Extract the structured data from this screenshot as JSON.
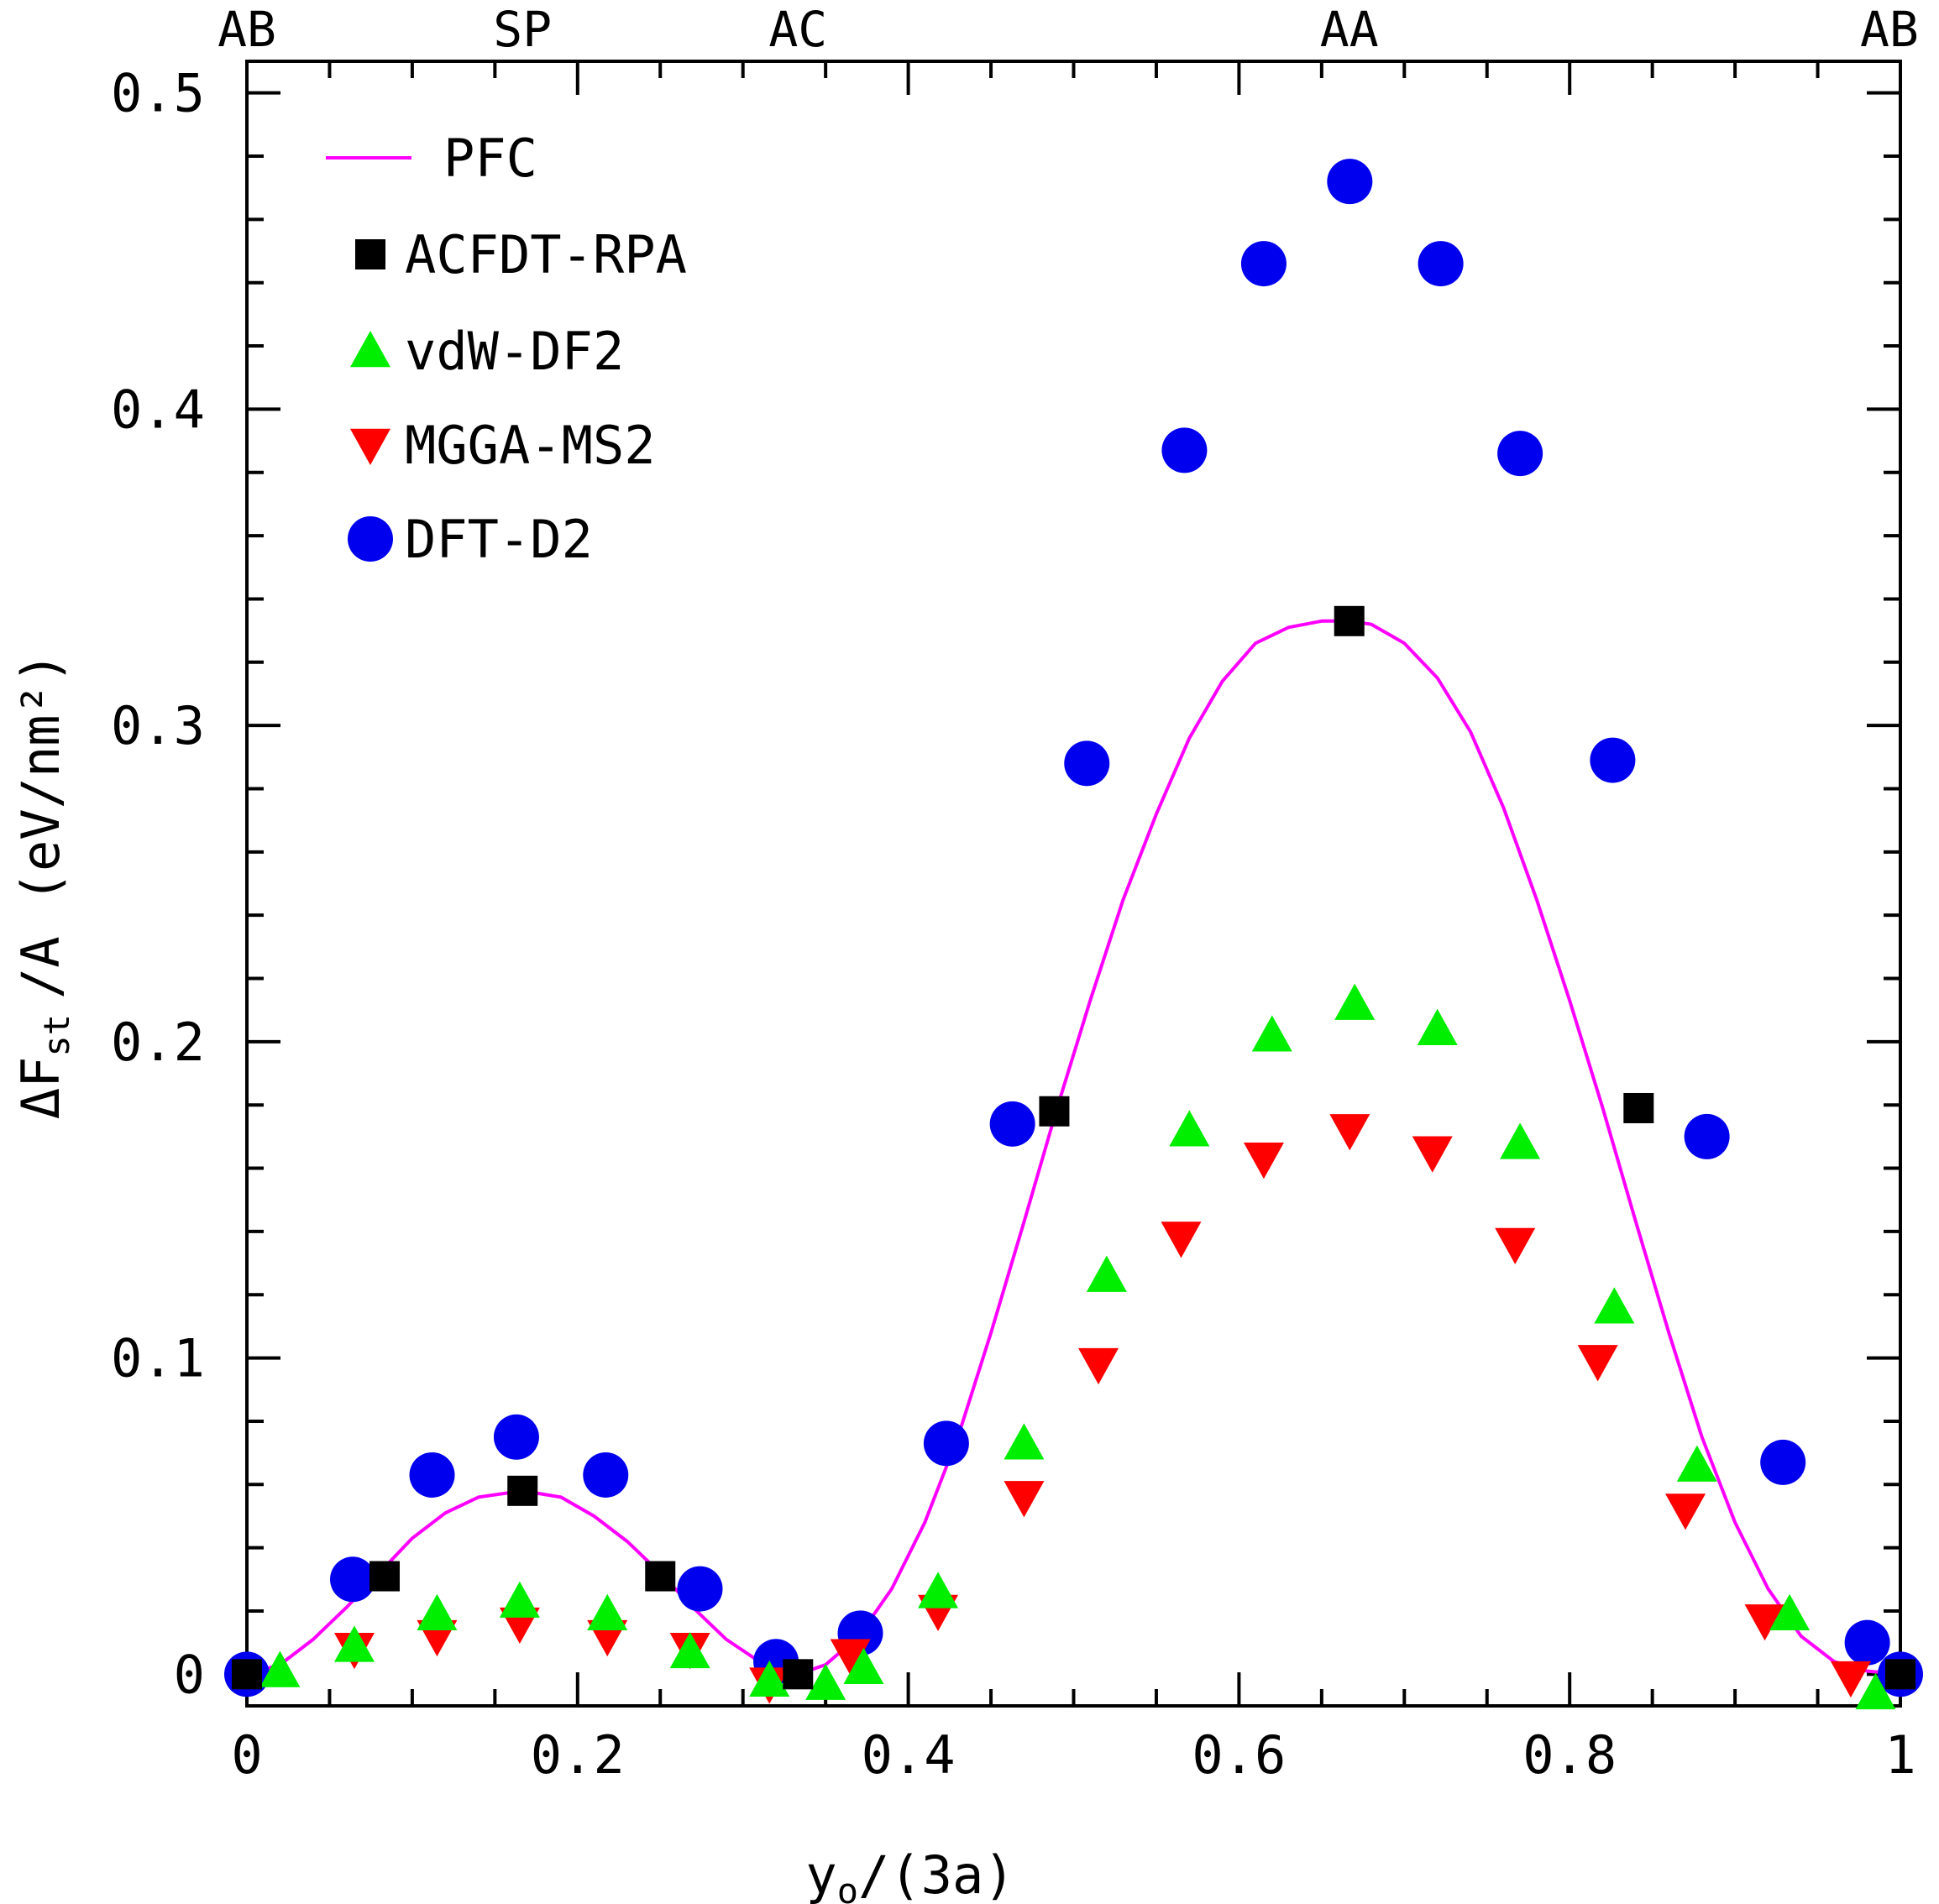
{
  "chart_data": {
    "type": "scatter",
    "xlabel": "y",
    "xlabel_sub": "o",
    "xlabel_suffix": "/(3a)",
    "ylabel_main": "ΔF",
    "ylabel_sub": "st",
    "ylabel_mid": "/A",
    "ylabel_units": "(eV/nm²)",
    "xlim": [
      0,
      1
    ],
    "ylim": [
      -0.01,
      0.51
    ],
    "x_ticks": [
      0,
      0.2,
      0.4,
      0.6,
      0.8,
      1
    ],
    "x_tick_labels": [
      "0",
      "0.2",
      "0.4",
      "0.6",
      "0.8",
      "1"
    ],
    "y_ticks": [
      0,
      0.1,
      0.2,
      0.3,
      0.4,
      0.5
    ],
    "y_tick_labels": [
      "0",
      "0.1",
      "0.2",
      "0.3",
      "0.4",
      "0.5"
    ],
    "top_labels": [
      {
        "x": 0,
        "text": "AB"
      },
      {
        "x": 0.1667,
        "text": "SP"
      },
      {
        "x": 0.3333,
        "text": "AC"
      },
      {
        "x": 0.6667,
        "text": "AA"
      },
      {
        "x": 1,
        "text": "AB"
      }
    ],
    "legend_position": "top-left",
    "series": [
      {
        "name": "PFC",
        "marker": "line",
        "color": "#ff00ff",
        "x": [
          0,
          0.02,
          0.04,
          0.06,
          0.08,
          0.1,
          0.12,
          0.14,
          0.1667,
          0.19,
          0.21,
          0.23,
          0.25,
          0.27,
          0.29,
          0.31,
          0.3333,
          0.35,
          0.37,
          0.39,
          0.41,
          0.43,
          0.45,
          0.47,
          0.49,
          0.51,
          0.53,
          0.55,
          0.57,
          0.59,
          0.61,
          0.63,
          0.65,
          0.6667,
          0.68,
          0.7,
          0.72,
          0.74,
          0.76,
          0.78,
          0.8,
          0.82,
          0.84,
          0.86,
          0.88,
          0.9,
          0.92,
          0.94,
          0.96,
          0.98,
          1.0
        ],
        "y": [
          0,
          0.003,
          0.011,
          0.021,
          0.032,
          0.043,
          0.051,
          0.056,
          0.058,
          0.056,
          0.05,
          0.042,
          0.032,
          0.021,
          0.011,
          0.004,
          0,
          0.003,
          0.012,
          0.027,
          0.048,
          0.075,
          0.108,
          0.143,
          0.179,
          0.213,
          0.245,
          0.272,
          0.296,
          0.314,
          0.326,
          0.331,
          0.333,
          0.333,
          0.332,
          0.326,
          0.315,
          0.298,
          0.274,
          0.245,
          0.213,
          0.179,
          0.143,
          0.108,
          0.075,
          0.048,
          0.027,
          0.012,
          0.004,
          0.001,
          0
        ]
      },
      {
        "name": "ACFDT-RPA",
        "marker": "square",
        "color": "#000000",
        "x": [
          0,
          0.0833,
          0.1667,
          0.25,
          0.3333,
          0.4883,
          0.6667,
          0.8417,
          1.0
        ],
        "y": [
          0,
          0.031,
          0.058,
          0.031,
          0,
          0.178,
          0.333,
          0.179,
          0
        ]
      },
      {
        "name": "vdW-DF2",
        "marker": "triangle-up",
        "color": "#00ee00",
        "x": [
          0.02,
          0.065,
          0.115,
          0.165,
          0.218,
          0.268,
          0.316,
          0.35,
          0.373,
          0.418,
          0.47,
          0.52,
          0.57,
          0.62,
          0.67,
          0.72,
          0.77,
          0.827,
          0.877,
          0.933,
          0.985
        ],
        "y": [
          0.001,
          0.009,
          0.019,
          0.023,
          0.019,
          0.007,
          -0.002,
          -0.003,
          0.002,
          0.026,
          0.073,
          0.126,
          0.172,
          0.202,
          0.212,
          0.204,
          0.168,
          0.116,
          0.066,
          0.019,
          -0.006
        ]
      },
      {
        "name": "MGGA-MS2",
        "marker": "triangle-down",
        "color": "#ff0000",
        "x": [
          0.065,
          0.115,
          0.165,
          0.218,
          0.268,
          0.316,
          0.365,
          0.418,
          0.47,
          0.515,
          0.565,
          0.615,
          0.667,
          0.717,
          0.767,
          0.817,
          0.87,
          0.918,
          0.97
        ],
        "y": [
          0.008,
          0.012,
          0.016,
          0.012,
          0.008,
          -0.003,
          0.006,
          0.02,
          0.056,
          0.098,
          0.138,
          0.163,
          0.172,
          0.165,
          0.136,
          0.099,
          0.052,
          0.017,
          -0.001
        ]
      },
      {
        "name": "DFT-D2",
        "marker": "circle",
        "color": "#0000ee",
        "x": [
          0,
          0.064,
          0.112,
          0.163,
          0.217,
          0.274,
          0.32,
          0.371,
          0.423,
          0.463,
          0.508,
          0.567,
          0.615,
          0.667,
          0.722,
          0.77,
          0.826,
          0.883,
          0.929,
          0.98,
          1.0
        ],
        "y": [
          0,
          0.03,
          0.063,
          0.075,
          0.063,
          0.027,
          0.004,
          0.013,
          0.073,
          0.174,
          0.288,
          0.387,
          0.446,
          0.472,
          0.446,
          0.386,
          0.289,
          0.17,
          0.067,
          0.01,
          0
        ]
      }
    ]
  }
}
